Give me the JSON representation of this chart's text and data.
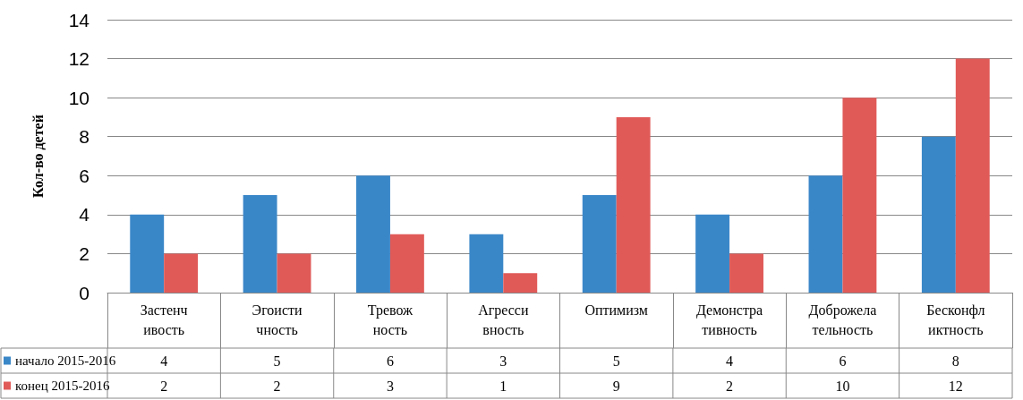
{
  "chart_data": {
    "type": "bar",
    "ylabel": "Кол-во детей",
    "categories": [
      "Застенчивость",
      "Эгоистичность",
      "Тревожность",
      "Агрессивность",
      "Оптимизм",
      "Демонстративность",
      "Доброжелательность",
      "Бесконфликтность"
    ],
    "series": [
      {
        "name": "начало 2015-2016",
        "color": "#3a87c8",
        "values": [
          4,
          5,
          6,
          3,
          5,
          4,
          6,
          8
        ]
      },
      {
        "name": "конец 2015-2016",
        "color": "#e05a58",
        "values": [
          2,
          2,
          3,
          1,
          9,
          2,
          10,
          12
        ]
      }
    ],
    "ylim": [
      0,
      14
    ],
    "yticks": [
      0,
      2,
      4,
      6,
      8,
      10,
      12,
      14
    ],
    "grid": "y",
    "legend": "bottom left",
    "data_labels": true
  }
}
